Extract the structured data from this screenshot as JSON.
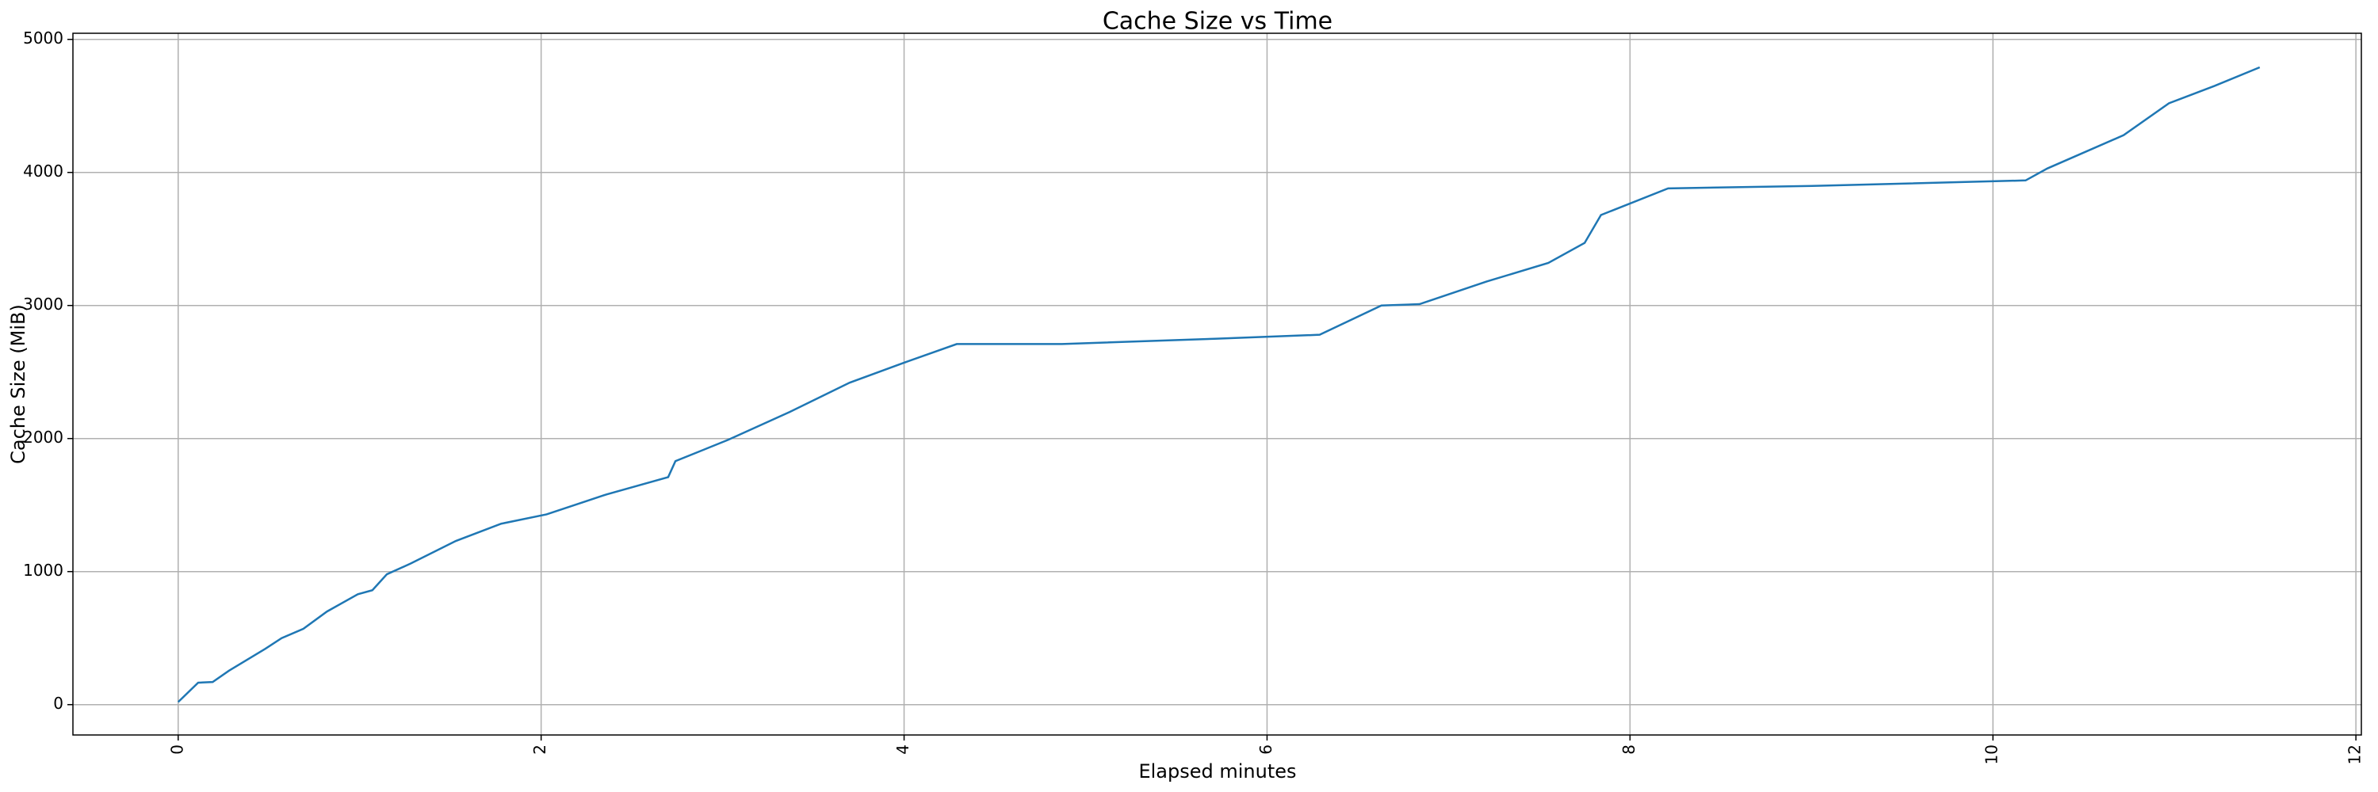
{
  "chart_data": {
    "type": "line",
    "title": "Cache Size vs Time",
    "xlabel": "Elapsed minutes",
    "ylabel": "Cache Size (MiB)",
    "series": [
      {
        "color": "#1f77b4",
        "x": [
          0,
          0.11,
          0.19,
          0.28,
          0.48,
          0.57,
          0.69,
          0.82,
          0.99,
          1.07,
          1.15,
          1.28,
          1.53,
          1.78,
          2.03,
          2.36,
          2.7,
          2.74,
          3.03,
          3.37,
          3.7,
          4.0,
          4.29,
          4.87,
          5.71,
          6.29,
          6.63,
          6.84,
          7.21,
          7.55,
          7.75,
          7.84,
          8.21,
          9.05,
          10.18,
          10.3,
          10.72,
          10.97,
          11.22,
          11.47
        ],
        "values": [
          20,
          165,
          170,
          255,
          420,
          500,
          570,
          700,
          830,
          860,
          980,
          1060,
          1230,
          1360,
          1430,
          1580,
          1710,
          1830,
          1990,
          2200,
          2420,
          2570,
          2710,
          2710,
          2750,
          2780,
          3000,
          3010,
          3180,
          3320,
          3470,
          3680,
          3880,
          3900,
          3940,
          4030,
          4280,
          4520,
          4650,
          4790
        ]
      }
    ],
    "xlim": [
      -0.58,
      12.03
    ],
    "xticks": [
      0,
      2,
      4,
      6,
      8,
      10,
      12
    ],
    "ylim": [
      -228,
      5046
    ],
    "yticks": [
      0,
      1000,
      2000,
      3000,
      4000,
      5000
    ],
    "grid": true
  }
}
